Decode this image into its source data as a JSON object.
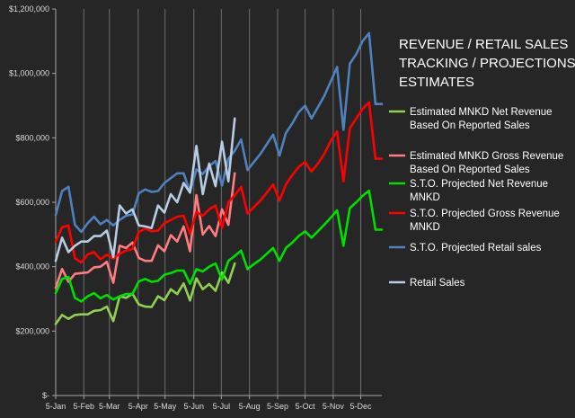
{
  "chart_data": {
    "type": "line",
    "title_lines": [
      "REVENUE / RETAIL SALES",
      "TRACKING / PROJECTIONS /",
      "ESTIMATES"
    ],
    "xlabel": "",
    "ylabel": "",
    "x_domain_weeks": [
      0,
      51
    ],
    "ylim": [
      0,
      1200000
    ],
    "y_ticks": [
      0,
      200000,
      400000,
      600000,
      800000,
      1000000,
      1200000
    ],
    "y_tick_labels": [
      "$-",
      "$200,000",
      "$400,000",
      "$600,000",
      "$800,000",
      "$1,000,000",
      "$1,200,000"
    ],
    "x_tick_labels": [
      "5-Jan",
      "5-Feb",
      "5-Mar",
      "5-Apr",
      "5-May",
      "5-Jun",
      "5-Jul",
      "5-Aug",
      "5-Sep",
      "5-Oct",
      "5-Nov",
      "5-Dec"
    ],
    "x_tick_weeks": [
      0,
      4.4,
      8.4,
      12.9,
      17.1,
      21.6,
      25.9,
      30.3,
      34.7,
      39.0,
      43.4,
      47.7
    ],
    "grid": "vertical",
    "legend_position": "right",
    "series": [
      {
        "name": "Estimated MNKD Net Revenue Based On Reported Sales",
        "legend_lines": [
          "Estimated MNKD Net Revenue",
          "Based On Reported Sales"
        ],
        "color": "#92d050",
        "x": [
          0,
          1,
          2,
          3,
          4,
          5,
          6,
          7,
          8,
          9,
          10,
          11,
          12,
          13,
          14,
          15,
          16,
          17,
          18,
          19,
          20,
          21,
          22,
          23,
          24,
          25,
          26,
          27,
          28
        ],
        "y": [
          222000,
          250000,
          238000,
          250000,
          252000,
          252000,
          263000,
          265000,
          276000,
          231000,
          308000,
          303000,
          316000,
          283000,
          276000,
          275000,
          308000,
          296000,
          330000,
          315000,
          348000,
          295000,
          364000,
          330000,
          346000,
          325000,
          382000,
          350000,
          410000
        ]
      },
      {
        "name": "Estimated MNKD Gross Revenue Based On Reported Sales",
        "legend_lines": [
          "Estimated MNKD Gross Revenue",
          "Based On Reported Sales"
        ],
        "color": "#ff7c80",
        "x": [
          0,
          1,
          2,
          3,
          4,
          5,
          6,
          7,
          8,
          9,
          10,
          11,
          12,
          13,
          14,
          15,
          16,
          17,
          18,
          19,
          20,
          21,
          22,
          23,
          24,
          25,
          26,
          27,
          28
        ],
        "y": [
          334000,
          393000,
          353000,
          378000,
          380000,
          382000,
          398000,
          400000,
          415000,
          350000,
          465000,
          458000,
          475000,
          427000,
          418000,
          418000,
          466000,
          448000,
          498000,
          478000,
          525000,
          448000,
          622000,
          500000,
          526000,
          495000,
          578000,
          530000,
          690000
        ]
      },
      {
        "name": "S.T.O. Projected Net Revenue MNKD",
        "legend_lines": [
          "S.T.O. Projected Net Revenue",
          "MNKD"
        ],
        "color": "#00e000",
        "x": [
          0,
          1,
          2,
          3,
          4,
          5,
          6,
          7,
          8,
          9,
          10,
          11,
          12,
          13,
          14,
          15,
          16,
          17,
          18,
          19,
          20,
          21,
          22,
          23,
          24,
          25,
          26,
          27,
          28,
          29,
          30,
          31,
          32,
          33,
          34,
          35,
          36,
          37,
          38,
          39,
          40,
          41,
          42,
          43,
          44,
          45,
          46,
          47,
          48,
          49,
          50,
          51
        ],
        "y": [
          318000,
          362000,
          368000,
          303000,
          292000,
          308000,
          318000,
          302000,
          312000,
          298000,
          308000,
          315000,
          315000,
          354000,
          362000,
          353000,
          356000,
          375000,
          380000,
          388000,
          388000,
          347000,
          392000,
          385000,
          400000,
          410000,
          360000,
          418000,
          433000,
          450000,
          392000,
          408000,
          422000,
          440000,
          458000,
          418000,
          458000,
          475000,
          495000,
          510000,
          490000,
          510000,
          530000,
          552000,
          575000,
          465000,
          582000,
          600000,
          620000,
          636000,
          515000,
          515000
        ]
      },
      {
        "name": "S.T.O. Projected Gross Revenue MNKD",
        "legend_lines": [
          "S.T.O. Projected Gross Revenue",
          "MNKD"
        ],
        "color": "#ff0000",
        "x": [
          0,
          1,
          2,
          3,
          4,
          5,
          6,
          7,
          8,
          9,
          10,
          11,
          12,
          13,
          14,
          15,
          16,
          17,
          18,
          19,
          20,
          21,
          22,
          23,
          24,
          25,
          26,
          27,
          28,
          29,
          30,
          31,
          32,
          33,
          34,
          35,
          36,
          37,
          38,
          39,
          40,
          41,
          42,
          43,
          44,
          45,
          46,
          47,
          48,
          49,
          50,
          51
        ],
        "y": [
          478000,
          522000,
          528000,
          426000,
          413000,
          438000,
          445000,
          423000,
          437000,
          425000,
          440000,
          450000,
          455000,
          508000,
          518000,
          510000,
          512000,
          535000,
          545000,
          555000,
          558000,
          502000,
          570000,
          558000,
          578000,
          590000,
          520000,
          600000,
          622000,
          648000,
          565000,
          585000,
          605000,
          630000,
          655000,
          605000,
          655000,
          685000,
          710000,
          725000,
          695000,
          720000,
          750000,
          790000,
          820000,
          665000,
          830000,
          860000,
          890000,
          910000,
          735000,
          735000
        ]
      },
      {
        "name": "S.T.O. Projected Retail sales",
        "legend_lines": [
          "S.T.O. Projected Retail sales"
        ],
        "color": "#4f81bd",
        "x": [
          0,
          1,
          2,
          3,
          4,
          5,
          6,
          7,
          8,
          9,
          10,
          11,
          12,
          13,
          14,
          15,
          16,
          17,
          18,
          19,
          20,
          21,
          22,
          23,
          24,
          25,
          26,
          27,
          28,
          29,
          30,
          31,
          32,
          33,
          34,
          35,
          36,
          37,
          38,
          39,
          40,
          41,
          42,
          43,
          44,
          45,
          46,
          47,
          48,
          49,
          50,
          51
        ],
        "y": [
          560000,
          635000,
          648000,
          530000,
          508000,
          535000,
          555000,
          532000,
          545000,
          528000,
          545000,
          558000,
          562000,
          628000,
          640000,
          632000,
          635000,
          660000,
          675000,
          690000,
          690000,
          632000,
          702000,
          688000,
          712000,
          728000,
          652000,
          735000,
          760000,
          795000,
          700000,
          725000,
          750000,
          780000,
          810000,
          745000,
          815000,
          845000,
          880000,
          900000,
          860000,
          895000,
          930000,
          975000,
          1020000,
          825000,
          1030000,
          1060000,
          1100000,
          1125000,
          905000,
          905000
        ]
      },
      {
        "name": "Retail Sales",
        "legend_lines": [
          "Retail Sales"
        ],
        "color": "#b8cce4",
        "x": [
          0,
          1,
          2,
          3,
          4,
          5,
          6,
          7,
          8,
          9,
          10,
          11,
          12,
          13,
          14,
          15,
          16,
          17,
          18,
          19,
          20,
          21,
          22,
          23,
          24,
          25,
          26,
          27,
          28
        ],
        "y": [
          418000,
          490000,
          445000,
          465000,
          478000,
          478000,
          495000,
          495000,
          512000,
          430000,
          590000,
          565000,
          578000,
          528000,
          525000,
          520000,
          590000,
          568000,
          625000,
          600000,
          660000,
          630000,
          775000,
          625000,
          720000,
          650000,
          788000,
          665000,
          860000
        ]
      }
    ]
  }
}
